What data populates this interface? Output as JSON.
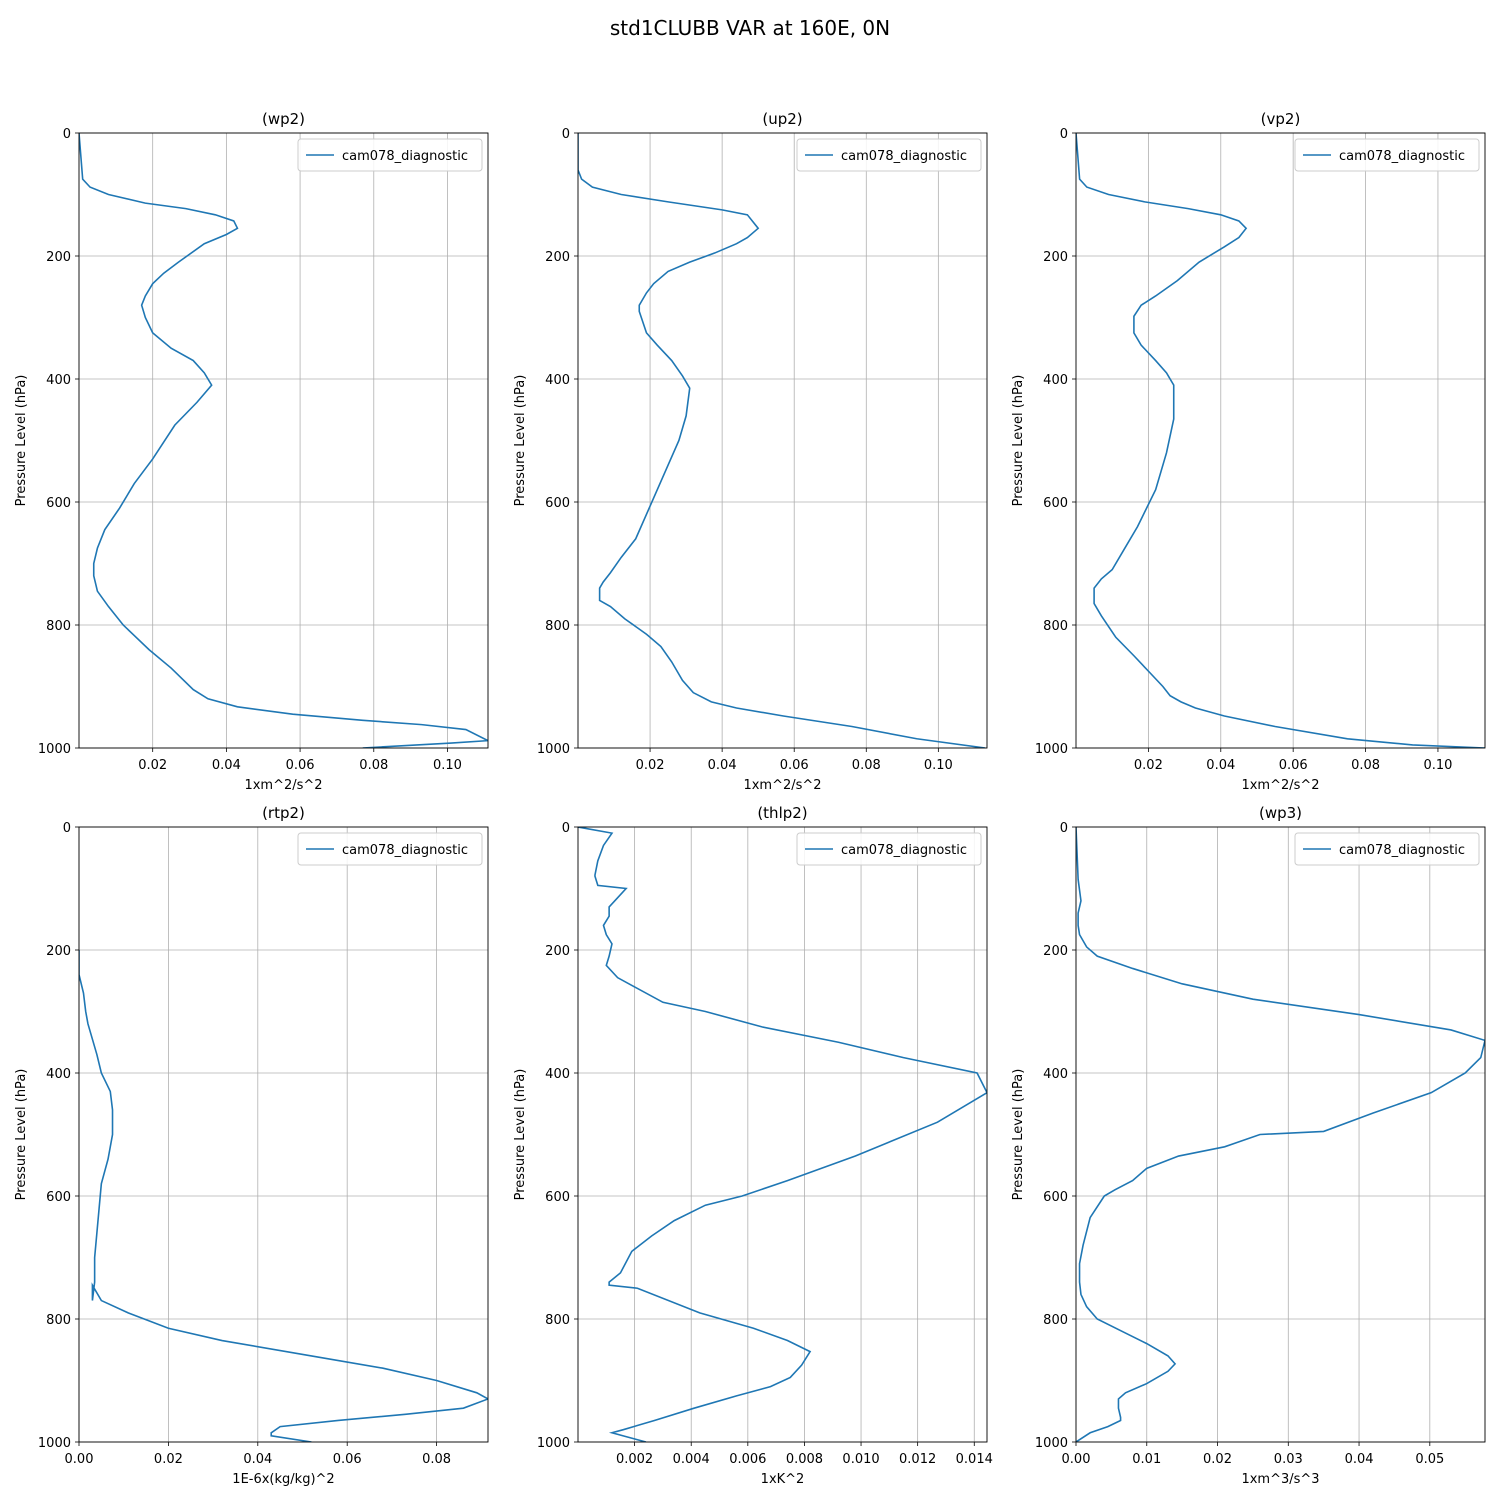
{
  "figure": {
    "title": "std1CLUBB VAR at 160E, 0N",
    "line_color": "#1f77b4",
    "grid_color": "#b0b0b0"
  },
  "chart_data": [
    {
      "type": "line",
      "title": "(wp2)",
      "xlabel": "1xm^2/s^2",
      "ylabel": "Pressure Level (hPa)",
      "xlim": [
        0.0,
        0.111
      ],
      "ylim": [
        1000,
        0
      ],
      "xticks": [
        0.02,
        0.04,
        0.06,
        0.08,
        0.1
      ],
      "xtick_labels": [
        "0.02",
        "0.04",
        "0.06",
        "0.08",
        "0.10"
      ],
      "yticks": [
        0,
        200,
        400,
        600,
        800,
        1000
      ],
      "grid": true,
      "legend_position": "upper right",
      "series": [
        {
          "name": "cam078_diagnostic",
          "x": [
            0.0,
            0.001,
            0.003,
            0.008,
            0.018,
            0.029,
            0.037,
            0.042,
            0.043,
            0.04,
            0.034,
            0.027,
            0.023,
            0.02,
            0.018,
            0.017,
            0.018,
            0.02,
            0.025,
            0.031,
            0.034,
            0.036,
            0.032,
            0.026,
            0.02,
            0.015,
            0.011,
            0.007,
            0.005,
            0.004,
            0.004,
            0.005,
            0.008,
            0.012,
            0.019,
            0.025,
            0.031,
            0.035,
            0.043,
            0.058,
            0.077,
            0.093,
            0.105,
            0.111,
            0.101,
            0.077
          ],
          "y": [
            0,
            75,
            88,
            100,
            114,
            123,
            133,
            143,
            155,
            165,
            180,
            210,
            228,
            245,
            265,
            280,
            300,
            325,
            350,
            370,
            390,
            410,
            438,
            475,
            530,
            570,
            610,
            645,
            675,
            700,
            720,
            745,
            770,
            800,
            840,
            870,
            905,
            920,
            933,
            945,
            955,
            962,
            970,
            988,
            992,
            1000
          ]
        }
      ]
    },
    {
      "type": "line",
      "title": "(up2)",
      "xlabel": "1xm^2/s^2",
      "ylabel": "Pressure Level (hPa)",
      "xlim": [
        0.0,
        0.1135
      ],
      "ylim": [
        1000,
        0
      ],
      "xticks": [
        0.02,
        0.04,
        0.06,
        0.08,
        0.1
      ],
      "xtick_labels": [
        "0.02",
        "0.04",
        "0.06",
        "0.08",
        "0.10"
      ],
      "yticks": [
        0,
        200,
        400,
        600,
        800,
        1000
      ],
      "grid": true,
      "legend_position": "upper right",
      "series": [
        {
          "name": "cam078_diagnostic",
          "x": [
            0.0,
            0.0,
            0.001,
            0.004,
            0.012,
            0.025,
            0.04,
            0.047,
            0.05,
            0.047,
            0.044,
            0.038,
            0.031,
            0.025,
            0.021,
            0.019,
            0.017,
            0.017,
            0.019,
            0.022,
            0.026,
            0.029,
            0.031,
            0.03,
            0.028,
            0.025,
            0.022,
            0.019,
            0.016,
            0.012,
            0.009,
            0.007,
            0.006,
            0.006,
            0.006,
            0.009,
            0.013,
            0.019,
            0.023,
            0.026,
            0.029,
            0.032,
            0.037,
            0.044,
            0.057,
            0.076,
            0.094,
            0.113
          ],
          "y": [
            0,
            60,
            75,
            88,
            100,
            112,
            125,
            133,
            155,
            170,
            180,
            195,
            210,
            225,
            245,
            260,
            280,
            290,
            325,
            345,
            370,
            395,
            415,
            460,
            500,
            540,
            580,
            620,
            660,
            690,
            715,
            730,
            740,
            750,
            760,
            770,
            790,
            815,
            835,
            860,
            890,
            910,
            925,
            935,
            948,
            965,
            985,
            1000
          ]
        }
      ]
    },
    {
      "type": "line",
      "title": "(vp2)",
      "xlabel": "1xm^2/s^2",
      "ylabel": "Pressure Level (hPa)",
      "xlim": [
        0.0,
        0.113
      ],
      "ylim": [
        1000,
        0
      ],
      "xticks": [
        0.02,
        0.04,
        0.06,
        0.08,
        0.1
      ],
      "xtick_labels": [
        "0.02",
        "0.04",
        "0.06",
        "0.08",
        "0.10"
      ],
      "yticks": [
        0,
        200,
        400,
        600,
        800,
        1000
      ],
      "grid": true,
      "legend_position": "upper right",
      "series": [
        {
          "name": "cam078_diagnostic",
          "x": [
            0.0,
            0.001,
            0.003,
            0.009,
            0.019,
            0.031,
            0.04,
            0.045,
            0.047,
            0.045,
            0.041,
            0.034,
            0.028,
            0.022,
            0.018,
            0.016,
            0.016,
            0.018,
            0.022,
            0.025,
            0.027,
            0.027,
            0.025,
            0.022,
            0.017,
            0.013,
            0.01,
            0.007,
            0.005,
            0.005,
            0.005,
            0.007,
            0.011,
            0.016,
            0.02,
            0.024,
            0.026,
            0.029,
            0.033,
            0.041,
            0.055,
            0.075,
            0.093,
            0.113
          ],
          "y": [
            0,
            75,
            88,
            100,
            112,
            123,
            133,
            143,
            155,
            170,
            185,
            210,
            240,
            265,
            280,
            298,
            325,
            345,
            370,
            390,
            410,
            465,
            520,
            580,
            640,
            680,
            710,
            725,
            740,
            750,
            765,
            785,
            820,
            850,
            875,
            900,
            915,
            925,
            935,
            948,
            965,
            985,
            995,
            1000
          ]
        }
      ]
    },
    {
      "type": "line",
      "title": "(rtp2)",
      "xlabel": "1E-6x(kg/kg)^2",
      "ylabel": "Pressure Level (hPa)",
      "xlim": [
        0.0,
        0.0915
      ],
      "ylim": [
        1000,
        0
      ],
      "xticks": [
        0.0,
        0.02,
        0.04,
        0.06,
        0.08
      ],
      "xtick_labels": [
        "0.00",
        "0.02",
        "0.04",
        "0.06",
        "0.08"
      ],
      "yticks": [
        0,
        200,
        400,
        600,
        800,
        1000
      ],
      "grid": true,
      "legend_position": "upper right",
      "series": [
        {
          "name": "cam078_diagnostic",
          "x": [
            0.0,
            0.0,
            0.001,
            0.0015,
            0.002,
            0.003,
            0.004,
            0.005,
            0.007,
            0.0075,
            0.0075,
            0.0065,
            0.005,
            0.0045,
            0.004,
            0.0035,
            0.0035,
            0.003,
            0.003,
            0.005,
            0.011,
            0.02,
            0.032,
            0.052,
            0.068,
            0.08,
            0.089,
            0.0915,
            0.086,
            0.073,
            0.058,
            0.045,
            0.043,
            0.043,
            0.052
          ],
          "y": [
            200,
            240,
            270,
            300,
            320,
            345,
            370,
            400,
            430,
            460,
            500,
            540,
            580,
            620,
            660,
            700,
            740,
            770,
            745,
            770,
            790,
            815,
            835,
            860,
            880,
            900,
            920,
            930,
            945,
            955,
            965,
            975,
            985,
            990,
            1000
          ]
        }
      ]
    },
    {
      "type": "line",
      "title": "(thlp2)",
      "xlabel": "1xK^2",
      "ylabel": "Pressure Level (hPa)",
      "xlim": [
        0.0,
        0.01445
      ],
      "ylim": [
        1000,
        0
      ],
      "xticks": [
        0.002,
        0.004,
        0.006,
        0.008,
        0.01,
        0.012,
        0.014
      ],
      "xtick_labels": [
        "0.002",
        "0.004",
        "0.006",
        "0.008",
        "0.010",
        "0.012",
        "0.014"
      ],
      "yticks": [
        0,
        200,
        400,
        600,
        800,
        1000
      ],
      "grid": true,
      "legend_position": "upper right",
      "series": [
        {
          "name": "cam078_diagnostic",
          "x": [
            0.0,
            0.0012,
            0.0009,
            0.0007,
            0.0006,
            0.0006,
            0.0007,
            0.0017,
            0.0013,
            0.0011,
            0.0011,
            0.0009,
            0.001,
            0.0012,
            0.0011,
            0.001,
            0.0014,
            0.002,
            0.003,
            0.0045,
            0.0065,
            0.0092,
            0.0115,
            0.0141,
            0.01445,
            0.0127,
            0.0098,
            0.0074,
            0.0058,
            0.0045,
            0.0034,
            0.0026,
            0.0019,
            0.0015,
            0.0011,
            0.0011,
            0.0021,
            0.0043,
            0.0062,
            0.0074,
            0.0082,
            0.0079,
            0.0075,
            0.0068,
            0.0056,
            0.0041,
            0.0027,
            0.0016,
            0.0012,
            0.0016,
            0.0024
          ],
          "y": [
            0,
            10,
            30,
            55,
            78,
            80,
            95,
            100,
            120,
            130,
            145,
            160,
            175,
            190,
            210,
            225,
            245,
            260,
            285,
            300,
            325,
            350,
            375,
            400,
            432,
            480,
            535,
            575,
            600,
            615,
            640,
            665,
            690,
            725,
            740,
            745,
            750,
            790,
            815,
            835,
            853,
            875,
            895,
            910,
            925,
            945,
            965,
            980,
            985,
            990,
            1000
          ]
        }
      ]
    },
    {
      "type": "line",
      "title": "(wp3)",
      "xlabel": "1xm^3/s^3",
      "ylabel": "Pressure Level (hPa)",
      "xlim": [
        0.0,
        0.0578
      ],
      "ylim": [
        1000,
        0
      ],
      "xticks": [
        0.0,
        0.01,
        0.02,
        0.03,
        0.04,
        0.05
      ],
      "xtick_labels": [
        "0.00",
        "0.01",
        "0.02",
        "0.03",
        "0.04",
        "0.05"
      ],
      "yticks": [
        0,
        200,
        400,
        600,
        800,
        1000
      ],
      "grid": true,
      "legend_position": "upper right",
      "series": [
        {
          "name": "cam078_diagnostic",
          "x": [
            0.0,
            0.0003,
            0.0007,
            0.0003,
            0.0003,
            0.0005,
            0.0015,
            0.003,
            0.008,
            0.015,
            0.025,
            0.04,
            0.053,
            0.0578,
            0.0572,
            0.055,
            0.0502,
            0.042,
            0.035,
            0.026,
            0.021,
            0.0145,
            0.01,
            0.008,
            0.0055,
            0.004,
            0.002,
            0.001,
            0.0005,
            0.0005,
            0.0007,
            0.0015,
            0.003,
            0.0065,
            0.01,
            0.013,
            0.014,
            0.013,
            0.01,
            0.007,
            0.006,
            0.006,
            0.0063,
            0.0063,
            0.0045,
            0.002,
            0.0
          ],
          "y": [
            0,
            85,
            120,
            140,
            160,
            175,
            195,
            210,
            230,
            255,
            280,
            305,
            330,
            347,
            375,
            400,
            432,
            465,
            495,
            500,
            520,
            535,
            555,
            575,
            590,
            600,
            635,
            680,
            710,
            740,
            760,
            780,
            800,
            820,
            840,
            860,
            873,
            885,
            905,
            920,
            930,
            945,
            960,
            965,
            975,
            985,
            1000
          ]
        }
      ]
    }
  ]
}
